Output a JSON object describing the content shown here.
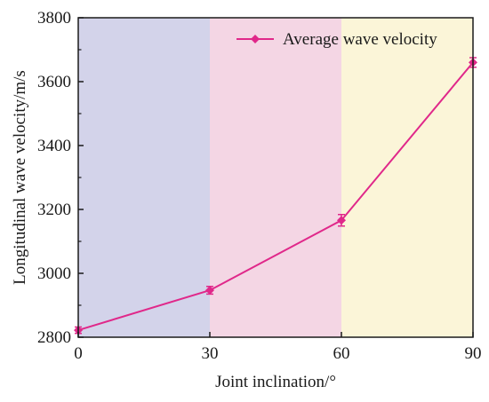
{
  "chart_data": {
    "type": "line",
    "xlabel": "Joint inclination/°",
    "ylabel": "Longitudinal wave velocity/m/s",
    "xlim": [
      0,
      90
    ],
    "ylim": [
      2800,
      3800
    ],
    "x_ticks": [
      0,
      30,
      60,
      90
    ],
    "y_ticks": [
      2800,
      3000,
      3200,
      3400,
      3600,
      3800
    ],
    "grid": false,
    "legend_position": "top-right",
    "background_bands": [
      {
        "from": 0,
        "to": 30,
        "color": "#d3d3ea"
      },
      {
        "from": 30,
        "to": 60,
        "color": "#f4d6e4"
      },
      {
        "from": 60,
        "to": 90,
        "color": "#fbf5d8"
      }
    ],
    "series": [
      {
        "name": "Average wave velocity",
        "color": "#e0288a",
        "marker": "diamond",
        "x": [
          0,
          30,
          60,
          90
        ],
        "y": [
          2822,
          2947,
          3166,
          3660
        ],
        "error": [
          10,
          12,
          18,
          15
        ]
      }
    ]
  }
}
